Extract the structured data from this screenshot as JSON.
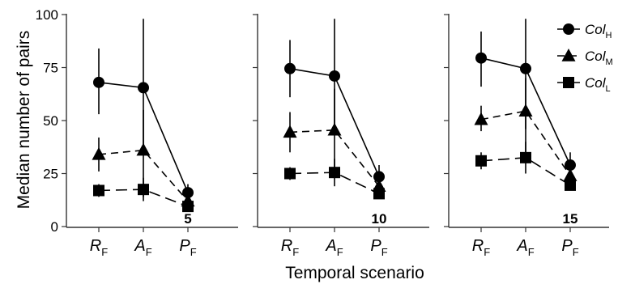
{
  "chart_data": {
    "type": "line",
    "ylabel": "Median number of pairs",
    "xlabel": "Temporal scenario",
    "ylim": [
      0,
      100
    ],
    "yticks": [
      0,
      25,
      50,
      75,
      100
    ],
    "categories": [
      {
        "main": "R",
        "sub": "F"
      },
      {
        "main": "A",
        "sub": "F"
      },
      {
        "main": "P",
        "sub": "F"
      }
    ],
    "legend": {
      "placement": "top-right",
      "entries": [
        {
          "main": "Col",
          "sub": "H",
          "marker": "circle",
          "dash": "solid"
        },
        {
          "main": "Col",
          "sub": "M",
          "marker": "triangle",
          "dash": "dashed"
        },
        {
          "main": "Col",
          "sub": "L",
          "marker": "square",
          "dash": "longdash"
        }
      ]
    },
    "panels": [
      {
        "label": "5",
        "series": [
          {
            "name": "Col_H",
            "values": [
              68,
              65.5,
              16
            ],
            "err_low": [
              53,
              35,
              10
            ],
            "err_high": [
              84,
              98,
              20
            ]
          },
          {
            "name": "Col_M",
            "values": [
              34,
              36,
              12
            ],
            "err_low": [
              26,
              14,
              8
            ],
            "err_high": [
              42,
              55,
              17
            ]
          },
          {
            "name": "Col_L",
            "values": [
              17,
              17.5,
              9.5
            ],
            "err_low": [
              14,
              12,
              7
            ],
            "err_high": [
              20,
              23,
              12
            ]
          }
        ]
      },
      {
        "label": "10",
        "series": [
          {
            "name": "Col_H",
            "values": [
              74.5,
              71,
              23.5
            ],
            "err_low": [
              61,
              43,
              18
            ],
            "err_high": [
              88,
              98,
              29
            ]
          },
          {
            "name": "Col_M",
            "values": [
              44.5,
              45.5,
              19
            ],
            "err_low": [
              35,
              25,
              15
            ],
            "err_high": [
              54,
              65,
              23
            ]
          },
          {
            "name": "Col_L",
            "values": [
              25,
              25.5,
              15.5
            ],
            "err_low": [
              22,
              19,
              13
            ],
            "err_high": [
              28,
              32,
              18
            ]
          }
        ]
      },
      {
        "label": "15",
        "series": [
          {
            "name": "Col_H",
            "values": [
              79.5,
              74.5,
              29
            ],
            "err_low": [
              66,
              46,
              23
            ],
            "err_high": [
              92,
              98,
              35
            ]
          },
          {
            "name": "Col_M",
            "values": [
              50.5,
              54.5,
              24
            ],
            "err_low": [
              45,
              35,
              19
            ],
            "err_high": [
              57,
              70,
              29
            ]
          },
          {
            "name": "Col_L",
            "values": [
              31,
              32.5,
              19.5
            ],
            "err_low": [
              27,
              25,
              17
            ],
            "err_high": [
              35,
              40,
              22
            ]
          }
        ]
      }
    ],
    "colors": {
      "ink": "#000000",
      "axis": "#333333",
      "background": "#ffffff"
    }
  }
}
